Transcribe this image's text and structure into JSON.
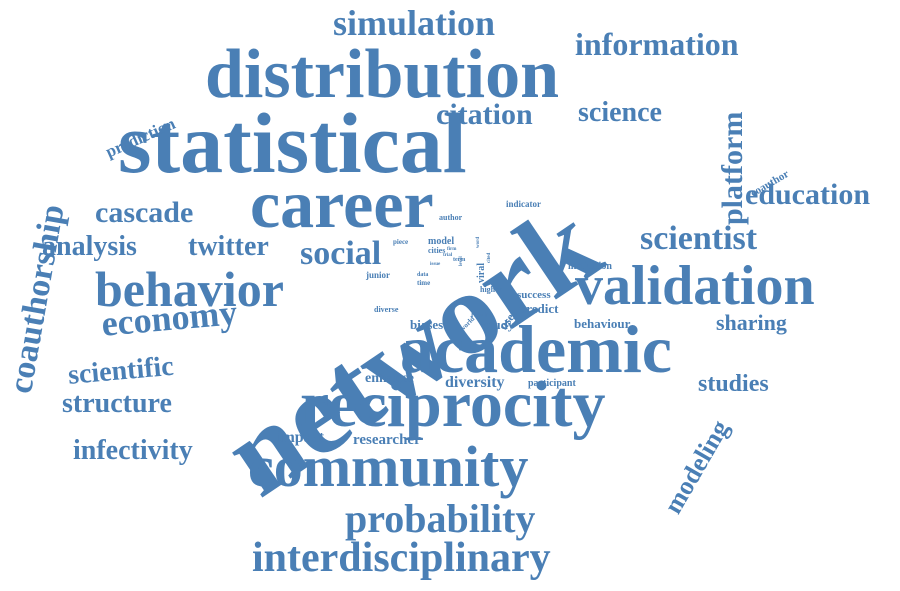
{
  "cloud": {
    "color": "#4a7fb5",
    "words": [
      "network",
      "statistical",
      "distribution",
      "career",
      "academic",
      "reciprocity",
      "community",
      "validation",
      "behavior",
      "interdisciplinary",
      "probability",
      "simulation",
      "information",
      "citation",
      "science",
      "platform",
      "coauthorship",
      "prediction",
      "coauthor",
      "education",
      "cascade",
      "analysis",
      "twitter",
      "social",
      "scientist",
      "economy",
      "sharing",
      "scientific",
      "structure",
      "infectivity",
      "studies",
      "modeling",
      "impact",
      "researcher",
      "enhance",
      "diversity",
      "participant",
      "biases",
      "study",
      "behaviour",
      "predict",
      "user",
      "success",
      "institution",
      "indicator",
      "author",
      "model",
      "cities",
      "piece",
      "junior",
      "data",
      "time",
      "result",
      "world",
      "diverse",
      "higher",
      "term",
      "viral",
      "word",
      "trial",
      "level",
      "cited",
      "issue",
      "firm"
    ]
  }
}
